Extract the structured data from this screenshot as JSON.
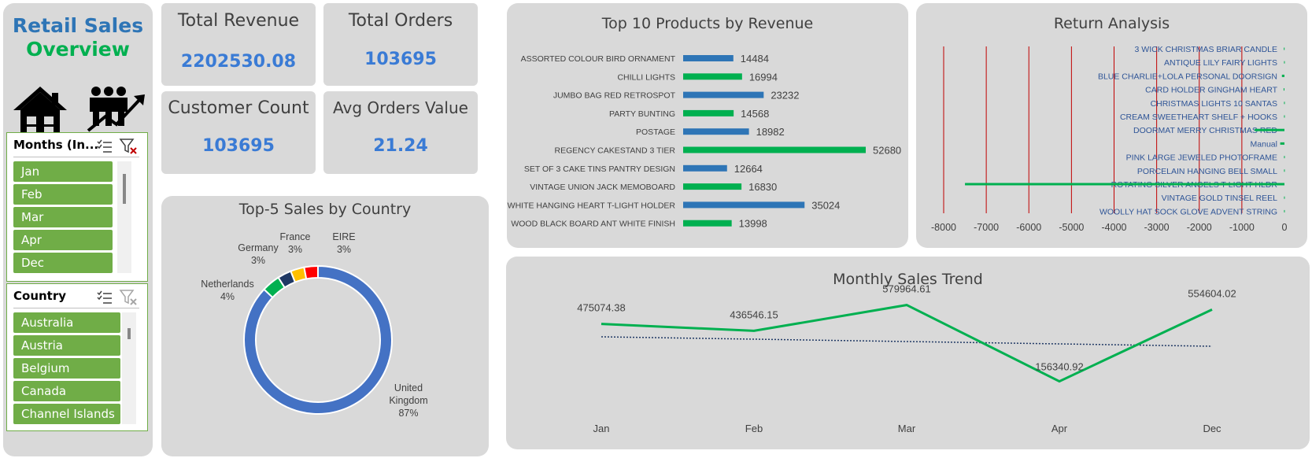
{
  "sidebar": {
    "title_line1": "Retail Sales",
    "title_line2": "Overview",
    "title_color1": "#2e75b6",
    "title_color2": "#00b050",
    "home_icon": "home-icon",
    "growth_icon": "people-growth-icon"
  },
  "slicer_months": {
    "header": "Months (In...",
    "items": [
      "Jan",
      "Feb",
      "Mar",
      "Apr",
      "Dec"
    ]
  },
  "slicer_country": {
    "header": "Country",
    "items": [
      "Australia",
      "Austria",
      "Belgium",
      "Canada",
      "Channel Islands"
    ]
  },
  "kpis": {
    "revenue": {
      "title": "Total Revenue",
      "value": "2202530.08"
    },
    "orders": {
      "title": "Total Orders",
      "value": "103695"
    },
    "customers": {
      "title": "Customer Count",
      "value": "103695"
    },
    "aov": {
      "title": "Avg Orders Value",
      "value": "21.24"
    }
  },
  "colors": {
    "blue": "#2e75b6",
    "green": "#00b050",
    "red": "#c00000"
  },
  "chart_data": [
    {
      "id": "top10",
      "type": "bar",
      "title": "Top 10 Products by Revenue",
      "categories": [
        "ASSORTED COLOUR BIRD ORNAMENT",
        "CHILLI LIGHTS",
        "JUMBO BAG RED RETROSPOT",
        "PARTY BUNTING",
        "POSTAGE",
        "REGENCY CAKESTAND 3 TIER",
        "SET OF 3 CAKE TINS PANTRY DESIGN",
        "VINTAGE UNION JACK MEMOBOARD",
        "WHITE HANGING HEART T-LIGHT HOLDER",
        "WOOD BLACK BOARD ANT WHITE FINISH"
      ],
      "values": [
        14484,
        16994,
        23232,
        14568,
        18982,
        52680,
        12664,
        16830,
        35024,
        13998
      ],
      "orientation": "horizontal"
    },
    {
      "id": "returns",
      "type": "bar",
      "title": "Return Analysis",
      "categories": [
        "3 WICK CHRISTMAS BRIAR CANDLE",
        "ANTIQUE LILY FAIRY LIGHTS",
        "BLUE CHARLIE+LOLA PERSONAL DOORSIGN",
        "CARD HOLDER GINGHAM HEART",
        "CHRISTMAS LIGHTS 10 SANTAS",
        "CREAM SWEETHEART SHELF + HOOKS",
        "DOORMAT MERRY CHRISTMAS RED",
        "Manual",
        "PINK LARGE JEWELED PHOTOFRAME",
        "PORCELAIN HANGING BELL SMALL",
        "ROTATING SILVER ANGELS T-LIGHT HLDR",
        "VINTAGE GOLD TINSEL REEL",
        "WOOLLY HAT SOCK GLOVE ADVENT STRING"
      ],
      "values": [
        -15,
        -10,
        -60,
        -20,
        -10,
        -10,
        -700,
        -100,
        -10,
        -10,
        -7500,
        -10,
        -10
      ],
      "xticks": [
        "-8000",
        "-7000",
        "-6000",
        "-5000",
        "-4000",
        "-3000",
        "-2000",
        "-1000",
        "0"
      ],
      "xlim": [
        -8000,
        0
      ],
      "orientation": "horizontal"
    },
    {
      "id": "country",
      "type": "pie",
      "title": "Top-5 Sales by Country",
      "labels": [
        "United Kingdom",
        "Netherlands",
        "Germany",
        "France",
        "EIRE"
      ],
      "label_lines": [
        [
          "United",
          "Kingdom",
          "87%"
        ],
        [
          "Netherlands",
          "4%"
        ],
        [
          "Germany",
          "3%"
        ],
        [
          "France",
          "3%"
        ],
        [
          "EIRE",
          "3%"
        ]
      ],
      "values": [
        87,
        4,
        3,
        3,
        3
      ],
      "colors": [
        "#4472c4",
        "#00b050",
        "#1f3864",
        "#ffc000",
        "#ff0000"
      ]
    },
    {
      "id": "monthly",
      "type": "line",
      "title": "Monthly Sales Trend",
      "categories": [
        "Jan",
        "Feb",
        "Mar",
        "Apr",
        "Dec"
      ],
      "values": [
        475074.38,
        436546.15,
        579964.61,
        156340.92,
        554604.02
      ],
      "labels": [
        "475074.38",
        "436546.15",
        "579964.61",
        "156340.92",
        "554604.02"
      ],
      "trendline": true,
      "ylim": [
        0,
        700000
      ]
    }
  ]
}
